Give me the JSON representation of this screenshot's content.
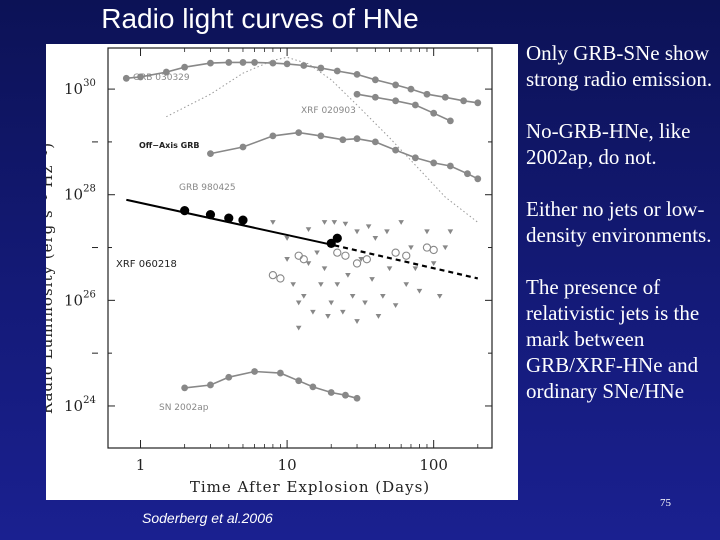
{
  "slide": {
    "title": "Radio light curves of HNe",
    "credit": "Soderberg et al.2006",
    "page_number": "75",
    "bullets": [
      "Only GRB-SNe show strong radio emission.",
      "No-GRB-HNe, like 2002ap, do not.",
      "Either no jets or low-density environments.",
      "The presence of relativistic jets is the mark between GRB/XRF-HNe and  ordinary SNe/HNe"
    ]
  },
  "chart_data": {
    "type": "scatter",
    "xlabel": "Time After Explosion (Days)",
    "ylabel": "Radio Luminosity (erg s⁻¹ Hz⁻¹)",
    "xscale": "log",
    "yscale": "log",
    "xlim": [
      0.6,
      250
    ],
    "ylim": [
      1.6e+23,
      6e+30
    ],
    "xticks": [
      {
        "value": 1,
        "label": "1"
      },
      {
        "value": 10,
        "label": "10"
      },
      {
        "value": 100,
        "label": "100"
      }
    ],
    "yticks": [
      {
        "value": 1e+24,
        "base": "10",
        "exp": "24"
      },
      {
        "value": 1e+26,
        "base": "10",
        "exp": "26"
      },
      {
        "value": 1e+28,
        "base": "10",
        "exp": "28"
      },
      {
        "value": 1e+30,
        "base": "10",
        "exp": "30"
      }
    ],
    "series": [
      {
        "name": "GRB 030329",
        "color": "#888888",
        "marker": "circle-line",
        "points": [
          [
            0.8,
            1.6e+30
          ],
          [
            1.0,
            1.7e+30
          ],
          [
            1.5,
            2.1e+30
          ],
          [
            2,
            2.6e+30
          ],
          [
            3,
            3.1e+30
          ],
          [
            4,
            3.2e+30
          ],
          [
            5,
            3.2e+30
          ],
          [
            6,
            3.2e+30
          ],
          [
            8,
            3.1e+30
          ],
          [
            10,
            3e+30
          ],
          [
            13,
            2.8e+30
          ],
          [
            17,
            2.5e+30
          ],
          [
            22,
            2.2e+30
          ],
          [
            30,
            1.9e+30
          ],
          [
            40,
            1.5e+30
          ],
          [
            55,
            1.2e+30
          ],
          [
            70,
            1e+30
          ],
          [
            90,
            8e+29
          ],
          [
            120,
            7e+29
          ],
          [
            160,
            6e+29
          ],
          [
            200,
            5.5e+29
          ]
        ]
      },
      {
        "name": "XRF 020903",
        "color": "#888888",
        "marker": "circle-line",
        "points": [
          [
            30,
            8e+29
          ],
          [
            40,
            7e+29
          ],
          [
            55,
            6e+29
          ],
          [
            75,
            5e+29
          ],
          [
            100,
            3.5e+29
          ],
          [
            130,
            2.5e+29
          ]
        ]
      },
      {
        "name": "Off-Axis GRB",
        "color": "#999999",
        "marker": "dotted",
        "points": [
          [
            1.5,
            3e+29
          ],
          [
            3,
            8e+29
          ],
          [
            5,
            2e+30
          ],
          [
            8,
            3.5e+30
          ],
          [
            10,
            4e+30
          ],
          [
            14,
            3e+30
          ],
          [
            20,
            1.5e+30
          ],
          [
            30,
            5e+29
          ],
          [
            50,
            1.2e+29
          ],
          [
            80,
            3e+28
          ],
          [
            120,
            9e+27
          ],
          [
            200,
            3e+27
          ]
        ]
      },
      {
        "name": "GRB 980425",
        "color": "#888888",
        "marker": "circle-line",
        "points": [
          [
            3,
            6e+28
          ],
          [
            5,
            8e+28
          ],
          [
            8,
            1.3e+29
          ],
          [
            12,
            1.5e+29
          ],
          [
            17,
            1.3e+29
          ],
          [
            24,
            1.1e+29
          ],
          [
            30,
            1.15e+29
          ],
          [
            40,
            1e+29
          ],
          [
            55,
            7e+28
          ],
          [
            75,
            5e+28
          ],
          [
            100,
            4e+28
          ],
          [
            130,
            3.5e+28
          ],
          [
            170,
            2.5e+28
          ],
          [
            200,
            2e+28
          ]
        ]
      },
      {
        "name": "XRF 060218",
        "color": "#000000",
        "marker": "filled-circle",
        "points": [
          [
            2,
            5e+27
          ],
          [
            3,
            4.2e+27
          ],
          [
            4,
            3.6e+27
          ],
          [
            5,
            3.3e+27
          ],
          [
            20,
            1.2e+27
          ],
          [
            22,
            1.5e+27
          ]
        ],
        "fit": [
          [
            0.8,
            8e+27
          ],
          [
            21,
            1.1e+27
          ],
          [
            200,
            2.6e+26
          ]
        ]
      },
      {
        "name": "SN 2002ap",
        "color": "#888888",
        "marker": "circle-line",
        "points": [
          [
            2,
            2.2e+24
          ],
          [
            3,
            2.5e+24
          ],
          [
            4,
            3.5e+24
          ],
          [
            6,
            4.5e+24
          ],
          [
            9,
            4.2e+24
          ],
          [
            12,
            3e+24
          ],
          [
            15,
            2.3e+24
          ],
          [
            20,
            1.8e+24
          ],
          [
            25,
            1.6e+24
          ],
          [
            30,
            1.4e+24
          ]
        ]
      },
      {
        "name": "",
        "color": "#888888",
        "marker": "open-circle",
        "points": [
          [
            8,
            3e+26
          ],
          [
            9,
            2.6e+26
          ],
          [
            12,
            7e+26
          ],
          [
            13,
            6e+26
          ],
          [
            22,
            8e+26
          ],
          [
            25,
            7e+26
          ],
          [
            30,
            5e+26
          ],
          [
            35,
            6e+26
          ],
          [
            55,
            8e+26
          ],
          [
            65,
            7e+26
          ],
          [
            90,
            1e+27
          ],
          [
            100,
            9e+26
          ]
        ]
      },
      {
        "name": "",
        "color": "#888888",
        "marker": "triangle-down",
        "points": [
          [
            8,
            3e+27
          ],
          [
            10,
            1.5e+27
          ],
          [
            10,
            6e+26
          ],
          [
            11,
            2e+26
          ],
          [
            12,
            9e+25
          ],
          [
            12,
            3e+25
          ],
          [
            13,
            1.2e+26
          ],
          [
            14,
            2.2e+27
          ],
          [
            14,
            5e+26
          ],
          [
            15,
            6e+25
          ],
          [
            16,
            8e+26
          ],
          [
            17,
            2e+26
          ],
          [
            18,
            3e+27
          ],
          [
            18,
            4e+26
          ],
          [
            19,
            5e+25
          ],
          [
            20,
            9e+25
          ],
          [
            21,
            3e+27
          ],
          [
            22,
            2e+26
          ],
          [
            24,
            6e+25
          ],
          [
            25,
            2.8e+27
          ],
          [
            26,
            3e+26
          ],
          [
            28,
            1.2e+26
          ],
          [
            30,
            2e+27
          ],
          [
            30,
            4e+25
          ],
          [
            32,
            6e+26
          ],
          [
            34,
            9e+25
          ],
          [
            36,
            2.5e+27
          ],
          [
            38,
            2.5e+26
          ],
          [
            40,
            1.5e+27
          ],
          [
            42,
            5e+25
          ],
          [
            45,
            1.2e+26
          ],
          [
            48,
            2e+27
          ],
          [
            50,
            4e+26
          ],
          [
            55,
            8e+25
          ],
          [
            60,
            3e+27
          ],
          [
            65,
            2e+26
          ],
          [
            70,
            1e+27
          ],
          [
            75,
            4e+26
          ],
          [
            80,
            1.5e+26
          ],
          [
            90,
            2e+27
          ],
          [
            100,
            5e+26
          ],
          [
            110,
            1.2e+26
          ],
          [
            120,
            1e+27
          ],
          [
            130,
            2e+27
          ]
        ]
      }
    ],
    "annotations": [
      "GRB 030329",
      "XRF 020903",
      "Off−Axis GRB",
      "GRB 980425",
      "XRF 060218",
      "SN 2002ap"
    ],
    "grid": false,
    "legend": "none"
  }
}
